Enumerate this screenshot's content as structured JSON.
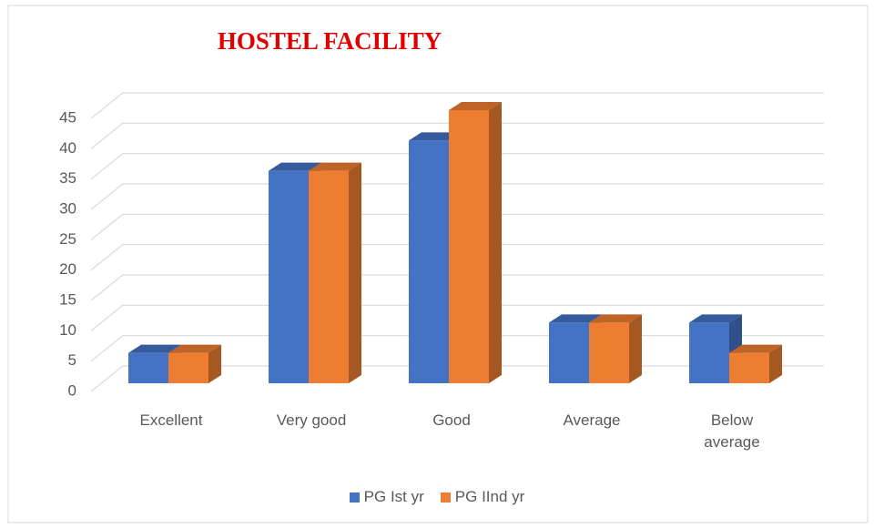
{
  "chart_data": {
    "type": "bar3d",
    "title": "HOSTEL FACILITY",
    "categories": [
      "Excellent",
      "Very good",
      "Good",
      "Average",
      "Below average"
    ],
    "series": [
      {
        "name": "PG Ist yr",
        "color": "#4472c4",
        "values": [
          5,
          35,
          40,
          10,
          10
        ]
      },
      {
        "name": "PG IInd yr",
        "color": "#ed7d31",
        "values": [
          5,
          35,
          45,
          10,
          5
        ]
      }
    ],
    "ylim": [
      0,
      45
    ],
    "yticks": [
      0,
      5,
      10,
      15,
      20,
      25,
      30,
      35,
      40,
      45
    ],
    "grid": true,
    "legend": "bottom"
  }
}
